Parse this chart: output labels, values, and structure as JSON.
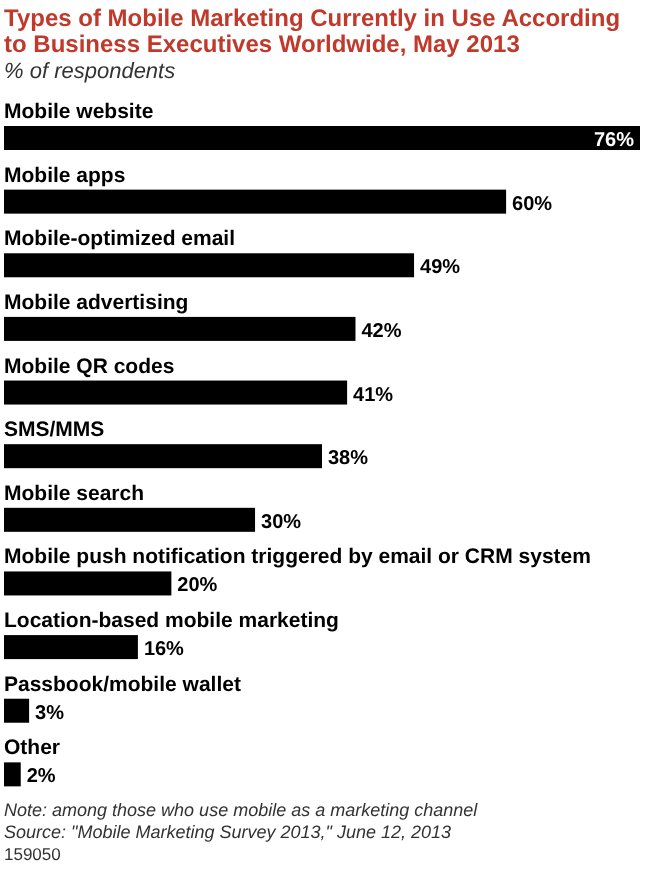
{
  "chart_data": {
    "type": "bar",
    "orientation": "horizontal",
    "title": "Types of Mobile Marketing Currently in Use According to Business Executives Worldwide, May 2013",
    "subtitle": "% of respondents",
    "categories": [
      "Mobile website",
      "Mobile apps",
      "Mobile-optimized email",
      "Mobile advertising",
      "Mobile QR codes",
      "SMS/MMS",
      "Mobile search",
      "Mobile push notification triggered by email or CRM system",
      "Location-based mobile marketing",
      "Passbook/mobile wallet",
      "Other"
    ],
    "values": [
      76,
      60,
      49,
      42,
      41,
      38,
      30,
      20,
      16,
      3,
      2
    ],
    "value_labels": [
      "76%",
      "60%",
      "49%",
      "42%",
      "41%",
      "38%",
      "30%",
      "20%",
      "16%",
      "3%",
      "2%"
    ],
    "color": "#000000",
    "annotations": [
      "Note: among those who use mobile as a marketing channel",
      "Source: \"Mobile Marketing Survey 2013,\" June 12, 2013",
      "159050"
    ]
  }
}
